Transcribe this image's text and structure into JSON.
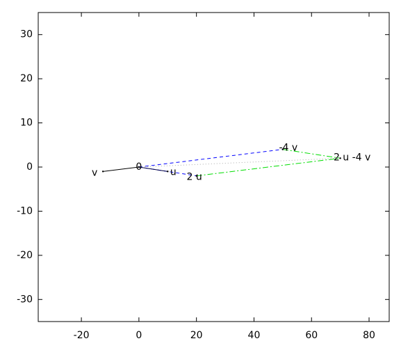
{
  "chart_data": {
    "type": "vector",
    "xlim": [
      -35,
      87
    ],
    "ylim": [
      -35,
      35
    ],
    "xticks": [
      -20,
      0,
      20,
      40,
      60,
      80
    ],
    "yticks": [
      -30,
      -20,
      -10,
      0,
      10,
      20,
      30
    ],
    "points": [
      {
        "label": "0",
        "x": 0,
        "y": 0
      },
      {
        "label": "u",
        "x": 10,
        "y": -1
      },
      {
        "label": "v",
        "x": -12.5,
        "y": -1
      },
      {
        "label": "2 u",
        "x": 20,
        "y": -2
      },
      {
        "label": "-4 v",
        "x": 50,
        "y": 4
      },
      {
        "label": "2 u -4 v",
        "x": 70,
        "y": 2
      }
    ],
    "segments": [
      {
        "x": [
          0,
          20
        ],
        "y": [
          0,
          -2
        ],
        "color": "#0000ff",
        "dash": "dashed"
      },
      {
        "x": [
          0,
          50
        ],
        "y": [
          0,
          4
        ],
        "color": "#0000ff",
        "dash": "dashed"
      },
      {
        "x": [
          20,
          70
        ],
        "y": [
          -2,
          2
        ],
        "color": "#00dd00",
        "dash": "dashdot"
      },
      {
        "x": [
          50,
          70
        ],
        "y": [
          4,
          2
        ],
        "color": "#00dd00",
        "dash": "dashdot"
      },
      {
        "x": [
          0,
          70
        ],
        "y": [
          0,
          2
        ],
        "color": "#aaaaaa",
        "dash": "dotted"
      },
      {
        "x": [
          0,
          10
        ],
        "y": [
          0,
          -1
        ],
        "color": "#000040",
        "dash": "solid"
      },
      {
        "x": [
          0,
          -12.5
        ],
        "y": [
          0,
          -1
        ],
        "color": "#000000",
        "dash": "solid"
      }
    ]
  }
}
